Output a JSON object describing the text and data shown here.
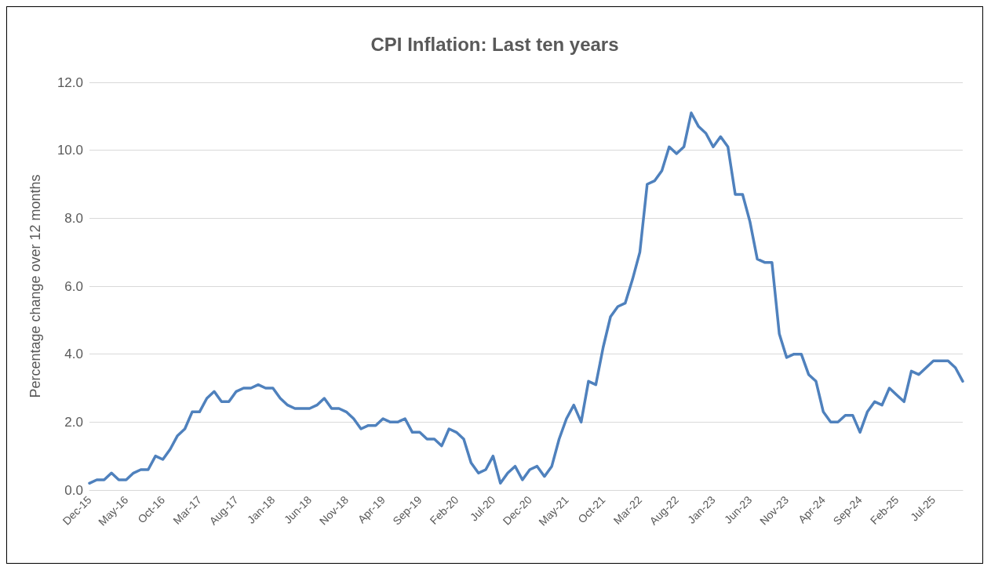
{
  "chart_data": {
    "type": "line",
    "title": "CPI Inflation: Last ten years",
    "ylabel": "Percentage change over 12 months",
    "categories": [
      "Dec-15",
      null,
      null,
      null,
      null,
      "May-16",
      null,
      null,
      null,
      null,
      "Oct-16",
      null,
      null,
      null,
      null,
      "Mar-17",
      null,
      null,
      null,
      null,
      "Aug-17",
      null,
      null,
      null,
      null,
      "Jan-18",
      null,
      null,
      null,
      null,
      "Jun-18",
      null,
      null,
      null,
      null,
      "Nov-18",
      null,
      null,
      null,
      null,
      "Apr-19",
      null,
      null,
      null,
      null,
      "Sep-19",
      null,
      null,
      null,
      null,
      "Feb-20",
      null,
      null,
      null,
      null,
      "Jul-20",
      null,
      null,
      null,
      null,
      "Dec-20",
      null,
      null,
      null,
      null,
      "May-21",
      null,
      null,
      null,
      null,
      "Oct-21",
      null,
      null,
      null,
      null,
      "Mar-22",
      null,
      null,
      null,
      null,
      "Aug-22",
      null,
      null,
      null,
      null,
      "Jan-23",
      null,
      null,
      null,
      null,
      "Jun-23",
      null,
      null,
      null,
      null,
      "Nov-23",
      null,
      null,
      null,
      null,
      "Apr-24",
      null,
      null,
      null,
      null,
      "Sep-24",
      null,
      null,
      null,
      null,
      "Feb-25",
      null,
      null,
      null,
      null,
      "Jul-25",
      null,
      null,
      null,
      null
    ],
    "series": [
      {
        "color": "#4f81bd",
        "values": [
          0.2,
          0.3,
          0.3,
          0.5,
          0.3,
          0.3,
          0.5,
          0.6,
          0.6,
          1.0,
          0.9,
          1.2,
          1.6,
          1.8,
          2.3,
          2.3,
          2.7,
          2.9,
          2.6,
          2.6,
          2.9,
          3.0,
          3.0,
          3.1,
          3.0,
          3.0,
          2.7,
          2.5,
          2.4,
          2.4,
          2.4,
          2.5,
          2.7,
          2.4,
          2.4,
          2.3,
          2.1,
          1.8,
          1.9,
          1.9,
          2.1,
          2.0,
          2.0,
          2.1,
          1.7,
          1.7,
          1.5,
          1.5,
          1.3,
          1.8,
          1.7,
          1.5,
          0.8,
          0.5,
          0.6,
          1.0,
          0.2,
          0.5,
          0.7,
          0.3,
          0.6,
          0.7,
          0.4,
          0.7,
          1.5,
          2.1,
          2.5,
          2.0,
          3.2,
          3.1,
          4.2,
          5.1,
          5.4,
          5.5,
          6.2,
          7.0,
          9.0,
          9.1,
          9.4,
          10.1,
          9.9,
          10.1,
          11.1,
          10.7,
          10.5,
          10.1,
          10.4,
          10.1,
          8.7,
          8.7,
          7.9,
          6.8,
          6.7,
          6.7,
          4.6,
          3.9,
          4.0,
          4.0,
          3.4,
          3.2,
          2.3,
          2.0,
          2.0,
          2.2,
          2.2,
          1.7,
          2.3,
          2.6,
          2.5,
          3.0,
          2.8,
          2.6,
          3.5,
          3.4,
          3.6,
          3.8,
          3.8,
          3.8,
          3.6,
          3.2
        ]
      }
    ],
    "ylim": [
      0,
      12
    ],
    "yticks": [
      {
        "value": 0,
        "label": "0.0"
      },
      {
        "value": 2,
        "label": "2.0"
      },
      {
        "value": 4,
        "label": "4.0"
      },
      {
        "value": 6,
        "label": "6.0"
      },
      {
        "value": 8,
        "label": "8.0"
      },
      {
        "value": 10,
        "label": "10.0"
      },
      {
        "value": 12,
        "label": "12.0"
      }
    ],
    "grid": "y",
    "marker": "none",
    "line_style": "solid"
  }
}
